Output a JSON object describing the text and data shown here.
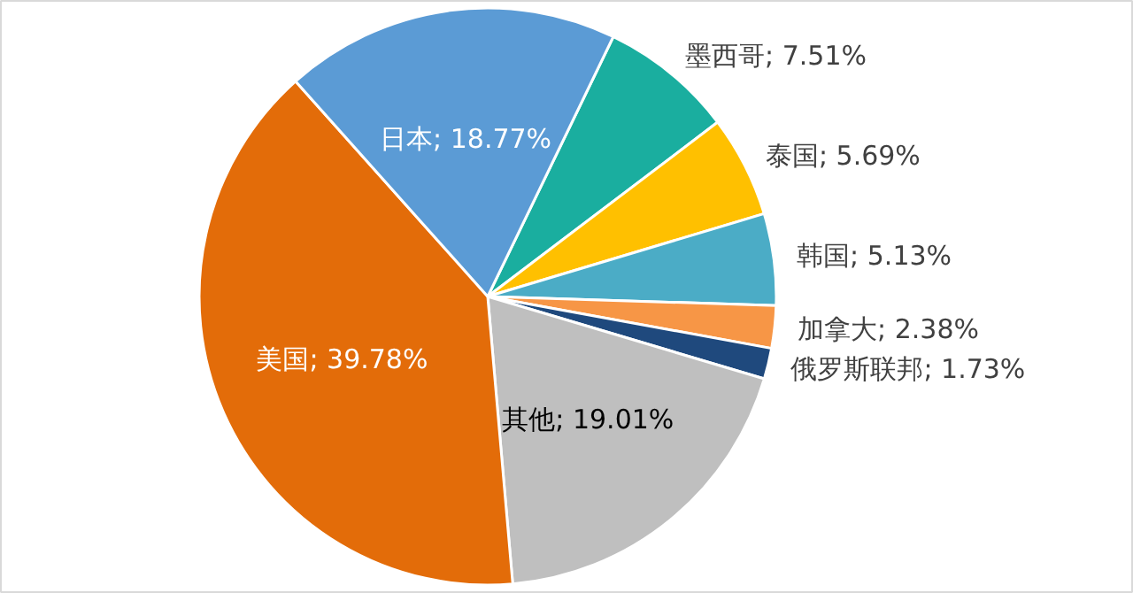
{
  "chart_data": {
    "type": "pie",
    "categories": [
      "墨西哥",
      "泰国",
      "韩国",
      "加拿大",
      "俄罗斯联邦",
      "其他",
      "美国",
      "日本"
    ],
    "values": [
      7.51,
      5.69,
      5.13,
      2.38,
      1.73,
      19.01,
      39.78,
      18.77
    ],
    "colors": [
      "#1aae9f",
      "#ffc000",
      "#4bacc6",
      "#f79646",
      "#1f497d",
      "#bfbfbf",
      "#e36c09",
      "#5b9bd5"
    ],
    "value_labels": [
      "; 7.51%",
      "; 5.69%",
      "; 5.13%",
      "; 2.38%",
      "; 1.73%",
      "; 19.01%",
      "; 39.78%",
      "; 18.77%"
    ]
  }
}
